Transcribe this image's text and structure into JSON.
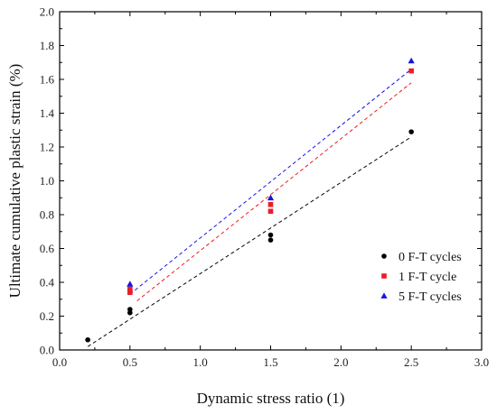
{
  "chart_data": {
    "type": "scatter",
    "title": "",
    "xlabel": "Dynamic stress ratio (1)",
    "ylabel": "Ultimate cumulative plastic strain (%)",
    "xlim": [
      0.0,
      3.0
    ],
    "ylim": [
      0.0,
      2.0
    ],
    "x_ticks": [
      "0.0",
      "0.5",
      "1.0",
      "1.5",
      "2.0",
      "2.5",
      "3.0"
    ],
    "y_ticks": [
      "0.0",
      "0.2",
      "0.4",
      "0.6",
      "0.8",
      "1.0",
      "1.2",
      "1.4",
      "1.6",
      "1.8",
      "2.0"
    ],
    "grid": false,
    "legend_position": "right",
    "series": [
      {
        "name": "0 F-T cycles",
        "marker": "circle",
        "color": "#000000",
        "points": [
          [
            0.2,
            0.06
          ],
          [
            0.5,
            0.22
          ],
          [
            0.5,
            0.24
          ],
          [
            1.5,
            0.65
          ],
          [
            1.5,
            0.68
          ],
          [
            2.5,
            1.29
          ]
        ],
        "fit": {
          "x": [
            0.2,
            2.5
          ],
          "y": [
            0.02,
            1.26
          ]
        }
      },
      {
        "name": "1 F-T cycle",
        "marker": "square",
        "color": "#ee1c25",
        "points": [
          [
            0.5,
            0.34
          ],
          [
            0.5,
            0.36
          ],
          [
            1.5,
            0.82
          ],
          [
            1.5,
            0.86
          ],
          [
            2.5,
            1.65
          ]
        ],
        "fit": {
          "x": [
            0.55,
            2.5
          ],
          "y": [
            0.29,
            1.58
          ]
        }
      },
      {
        "name": "5 F-T cycles",
        "marker": "triangle",
        "color": "#1414e6",
        "points": [
          [
            0.5,
            0.39
          ],
          [
            1.5,
            0.9
          ],
          [
            2.5,
            1.71
          ]
        ],
        "fit": {
          "x": [
            0.5,
            2.5
          ],
          "y": [
            0.33,
            1.66
          ]
        }
      }
    ]
  }
}
